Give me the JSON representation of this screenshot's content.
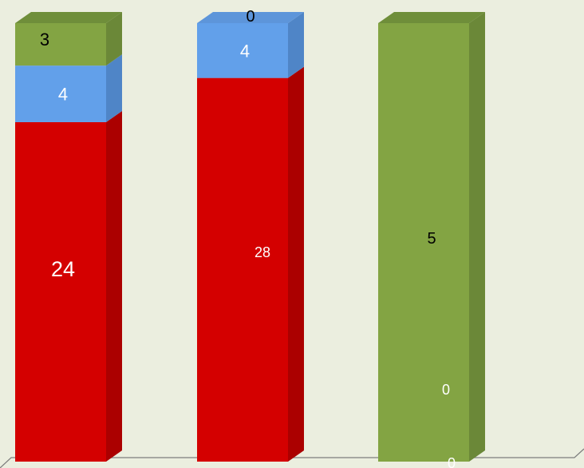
{
  "chart_data": {
    "type": "bar",
    "stacked": true,
    "three_d": true,
    "grid": false,
    "legend": "none",
    "categories": [
      "",
      "",
      ""
    ],
    "series": [
      {
        "values": [
          24,
          28,
          0
        ],
        "color": "#d40000",
        "side_color": "#ab0000",
        "top_color": "#d40000"
      },
      {
        "values": [
          4,
          4,
          0
        ],
        "color": "#62a0ea",
        "side_color": "#4f85c7",
        "top_color": "#5d95da"
      },
      {
        "values": [
          3,
          0,
          5
        ],
        "color": "#83a443",
        "side_color": "#6b8838",
        "top_color": "#6f8e3a"
      }
    ],
    "data_labels": [
      [
        "24",
        "28",
        "0"
      ],
      [
        "4",
        "4",
        "0"
      ],
      [
        "3",
        "0",
        "5"
      ]
    ],
    "label_colors": [
      "#ffffff",
      "#ffffff",
      "#000000"
    ],
    "ylim": [
      0,
      32
    ]
  },
  "colors": {
    "background": "#ebeedf",
    "floor_line": "#7d7d7d"
  }
}
